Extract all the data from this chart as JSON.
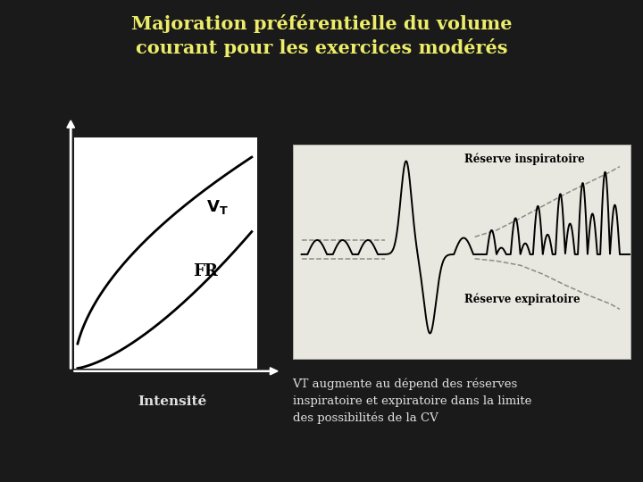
{
  "title_line1": "Majoration préférentielle du volume",
  "title_line2": "courant pour les exercices modérés",
  "title_color": "#eded6a",
  "background_color": "#1a1a1a",
  "left_panel_bg": "#ffffff",
  "right_panel_bg": "#e8e8e0",
  "left_label_intensity": "Intensité",
  "right_label_inspiratoire": "Réserve inspiratoire",
  "right_label_expiratoire": "Réserve expiratoire",
  "bottom_text_line1": "VT augmente au dépend des réserves",
  "bottom_text_line2": "inspiratoire et expiratoire dans la limite",
  "bottom_text_line3": "des possibilités de la CV",
  "text_color": "#e0e0e0",
  "arrow_color": "#ffffff",
  "curve_color": "#000000"
}
